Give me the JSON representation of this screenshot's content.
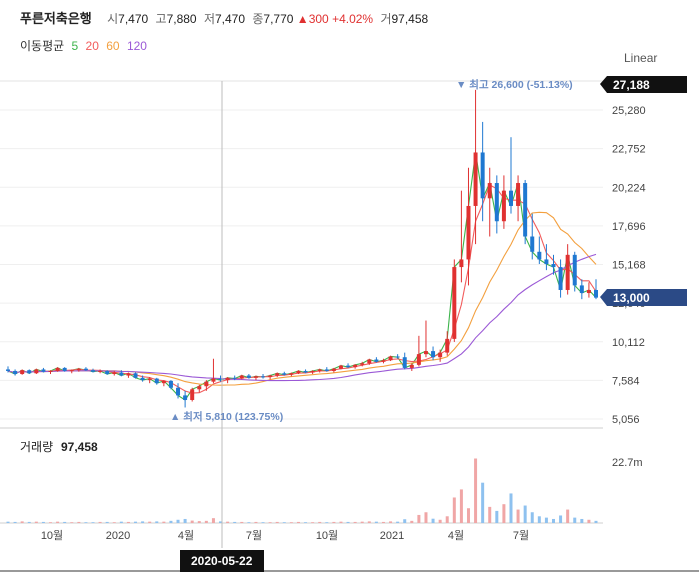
{
  "header": {
    "name": "푸른저축은행",
    "open_label": "시",
    "open": "7,470",
    "high_label": "고",
    "high": "7,880",
    "low_label": "저",
    "low": "7,470",
    "close_label": "종",
    "close": "7,770",
    "change_arrow": "▲",
    "change": "300",
    "change_pct": "+4.02%",
    "volume_label": "거",
    "volume": "97,458"
  },
  "ma_legend": {
    "label": "이동평균",
    "periods": [
      "5",
      "20",
      "60",
      "120"
    ],
    "colors": [
      "#3bb34a",
      "#f25c5c",
      "#f3a03f",
      "#9b59d6"
    ]
  },
  "scale_mode": "Linear",
  "crosshair_date": "2020-05-22",
  "colors": {
    "up": "#e03131",
    "down": "#1f78d1",
    "price_tag": "#2b4a86",
    "max_tag": "#111111"
  },
  "chart_data": {
    "type": "candlestick",
    "y_ticks": [
      "25,280",
      "22,752",
      "20,224",
      "17,696",
      "15,168",
      "12,640",
      "10,112",
      "7,584",
      "5,056"
    ],
    "ylim": [
      5056,
      27188
    ],
    "x_ticks": [
      "10월",
      "2020",
      "4월",
      "7월",
      "10월",
      "2021",
      "4월",
      "7월"
    ],
    "max_marker": "▼ 최고 26,600 (-51.13%)",
    "min_marker": "▲ 최저 5,810 (123.75%)",
    "current_price_tag": "13,000",
    "axis_top_tag": "27,188",
    "volume_panel_label": "거래량",
    "volume_value": "97,458",
    "volume_tick": "22.7m",
    "candles_weekly": [
      [
        8300,
        8500,
        8100,
        8200
      ],
      [
        8200,
        8300,
        7900,
        8000
      ],
      [
        8000,
        8300,
        7950,
        8250
      ],
      [
        8250,
        8300,
        8000,
        8050
      ],
      [
        8050,
        8350,
        8000,
        8300
      ],
      [
        8300,
        8400,
        8100,
        8150
      ],
      [
        8150,
        8250,
        8000,
        8200
      ],
      [
        8200,
        8450,
        8150,
        8400
      ],
      [
        8400,
        8450,
        8150,
        8200
      ],
      [
        8200,
        8300,
        8050,
        8250
      ],
      [
        8250,
        8400,
        8150,
        8350
      ],
      [
        8350,
        8450,
        8200,
        8250
      ],
      [
        8250,
        8350,
        8100,
        8150
      ],
      [
        8150,
        8300,
        8050,
        8200
      ],
      [
        8200,
        8250,
        7950,
        8000
      ],
      [
        8000,
        8200,
        7900,
        8100
      ],
      [
        8100,
        8250,
        7850,
        7900
      ],
      [
        7900,
        8100,
        7750,
        8050
      ],
      [
        8050,
        8100,
        7700,
        7750
      ],
      [
        7750,
        7900,
        7500,
        7600
      ],
      [
        7600,
        7800,
        7400,
        7700
      ],
      [
        7700,
        7750,
        7300,
        7400
      ],
      [
        7400,
        7600,
        7200,
        7550
      ],
      [
        7550,
        7600,
        7000,
        7100
      ],
      [
        7100,
        7400,
        6400,
        6600
      ],
      [
        6600,
        6900,
        5810,
        6300
      ],
      [
        6300,
        7100,
        6200,
        7000
      ],
      [
        7000,
        7300,
        6800,
        7200
      ],
      [
        7200,
        7600,
        6900,
        7500
      ],
      [
        7500,
        9000,
        7400,
        7700
      ],
      [
        7700,
        7900,
        7500,
        7600
      ],
      [
        7600,
        7800,
        7400,
        7750
      ],
      [
        7750,
        7900,
        7600,
        7700
      ],
      [
        7700,
        7950,
        7650,
        7900
      ],
      [
        7900,
        8000,
        7700,
        7750
      ],
      [
        7750,
        7900,
        7600,
        7850
      ],
      [
        7850,
        8000,
        7700,
        7800
      ],
      [
        7800,
        7950,
        7650,
        7900
      ],
      [
        7900,
        8100,
        7800,
        8050
      ],
      [
        8050,
        8150,
        7900,
        7950
      ],
      [
        7950,
        8100,
        7850,
        8050
      ],
      [
        8050,
        8250,
        8000,
        8200
      ],
      [
        8200,
        8300,
        8050,
        8100
      ],
      [
        8100,
        8250,
        8000,
        8200
      ],
      [
        8200,
        8350,
        8100,
        8300
      ],
      [
        8300,
        8450,
        8150,
        8200
      ],
      [
        8200,
        8400,
        8100,
        8350
      ],
      [
        8350,
        8600,
        8300,
        8550
      ],
      [
        8550,
        8700,
        8400,
        8450
      ],
      [
        8450,
        8650,
        8350,
        8600
      ],
      [
        8600,
        8800,
        8500,
        8700
      ],
      [
        8700,
        9000,
        8600,
        8950
      ],
      [
        8950,
        9100,
        8750,
        8800
      ],
      [
        8800,
        9000,
        8700,
        8900
      ],
      [
        8900,
        9200,
        8850,
        9150
      ],
      [
        9150,
        9300,
        9000,
        9100
      ],
      [
        9100,
        9400,
        8300,
        8400
      ],
      [
        8400,
        8700,
        8200,
        8600
      ],
      [
        8600,
        10500,
        8500,
        9300
      ],
      [
        9300,
        11500,
        9100,
        9500
      ],
      [
        9500,
        9800,
        8900,
        9100
      ],
      [
        9100,
        9600,
        8800,
        9400
      ],
      [
        9400,
        10800,
        9200,
        10300
      ],
      [
        10300,
        15500,
        10100,
        15000
      ],
      [
        15000,
        20000,
        14000,
        15500
      ],
      [
        15500,
        21500,
        13800,
        19000
      ],
      [
        19000,
        26600,
        16500,
        22500
      ],
      [
        22500,
        24500,
        18000,
        19500
      ],
      [
        19500,
        21500,
        17000,
        20500
      ],
      [
        20500,
        21000,
        17200,
        18000
      ],
      [
        18000,
        21000,
        17500,
        20000
      ],
      [
        20000,
        23500,
        18500,
        19000
      ],
      [
        19000,
        21000,
        18000,
        20500
      ],
      [
        20500,
        20700,
        16500,
        17000
      ],
      [
        17000,
        18500,
        15500,
        16000
      ],
      [
        16000,
        17000,
        15200,
        15500
      ],
      [
        15500,
        16500,
        14800,
        15200
      ],
      [
        15200,
        15800,
        14500,
        15000
      ],
      [
        15000,
        15500,
        13000,
        13500
      ],
      [
        13500,
        16500,
        13200,
        15800
      ],
      [
        15800,
        16000,
        13400,
        13800
      ],
      [
        13800,
        14200,
        12900,
        13300
      ],
      [
        13300,
        14000,
        13000,
        13500
      ],
      [
        13500,
        14200,
        12900,
        13000
      ]
    ],
    "volumes_weekly": [
      0.5,
      0.4,
      0.6,
      0.4,
      0.5,
      0.4,
      0.3,
      0.5,
      0.4,
      0.3,
      0.4,
      0.3,
      0.3,
      0.4,
      0.4,
      0.3,
      0.5,
      0.4,
      0.5,
      0.6,
      0.5,
      0.6,
      0.5,
      0.8,
      1.2,
      1.5,
      0.9,
      0.7,
      0.8,
      1.8,
      0.6,
      0.5,
      0.4,
      0.4,
      0.3,
      0.4,
      0.3,
      0.3,
      0.4,
      0.3,
      0.3,
      0.4,
      0.3,
      0.3,
      0.4,
      0.3,
      0.4,
      0.5,
      0.4,
      0.4,
      0.5,
      0.6,
      0.5,
      0.4,
      0.6,
      0.5,
      1.4,
      0.8,
      3.0,
      4.0,
      1.6,
      1.2,
      2.5,
      9.5,
      12.5,
      5.5,
      24.0,
      15.0,
      6.0,
      4.5,
      7.0,
      11.0,
      5.0,
      6.5,
      4.0,
      2.5,
      2.0,
      1.5,
      2.8,
      5.0,
      2.0,
      1.5,
      1.2,
      0.8
    ]
  }
}
